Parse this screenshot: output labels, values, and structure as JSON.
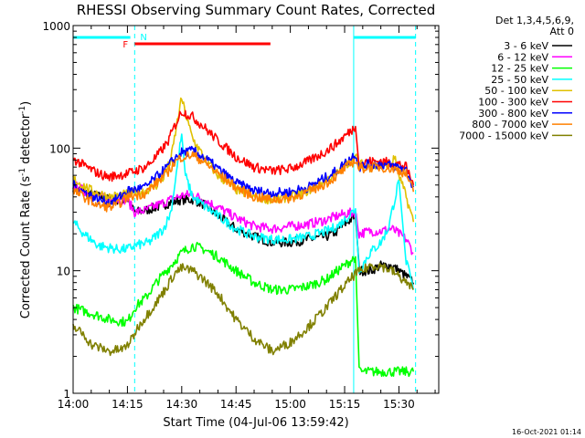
{
  "chart_data": {
    "type": "line",
    "title": "RHESSI Observing Summary Count Rates, Corrected",
    "xlabel": "Start Time (04-Jul-06 13:59:42)",
    "ylabel": "Corrected Count Rate (s",
    "ylabel_sup1": "-1",
    "ylabel_mid": " detector",
    "ylabel_sup2": "-1",
    "ylabel_end": ")",
    "yscale": "log",
    "ylim": [
      1,
      1000
    ],
    "xlim_minutes": [
      0,
      101
    ],
    "x_ticks": [
      {
        "label": "14:00",
        "minute": 0
      },
      {
        "label": "14:15",
        "minute": 15
      },
      {
        "label": "14:30",
        "minute": 30
      },
      {
        "label": "14:45",
        "minute": 45
      },
      {
        "label": "15:00",
        "minute": 60
      },
      {
        "label": "15:15",
        "minute": 75
      },
      {
        "label": "15:30",
        "minute": 90
      }
    ],
    "y_ticks": [
      {
        "label": "1",
        "value": 1
      },
      {
        "label": "10",
        "value": 10
      },
      {
        "label": "100",
        "value": 100
      },
      {
        "label": "1000",
        "value": 1000
      }
    ],
    "legend_header": [
      "Det 1,3,4,5,6,9,",
      "Att 0"
    ],
    "series": [
      {
        "name": "3 - 6 keV",
        "color": "#000000",
        "points": [
          [
            0,
            48
          ],
          [
            5,
            42
          ],
          [
            10,
            38
          ],
          [
            15,
            38
          ],
          [
            17,
            30
          ],
          [
            20,
            31
          ],
          [
            23,
            33
          ],
          [
            27,
            36
          ],
          [
            30,
            38
          ],
          [
            33,
            38
          ],
          [
            36,
            35
          ],
          [
            40,
            28
          ],
          [
            45,
            22
          ],
          [
            50,
            19
          ],
          [
            55,
            17
          ],
          [
            60,
            17
          ],
          [
            65,
            18
          ],
          [
            70,
            19
          ],
          [
            73,
            21
          ],
          [
            75,
            24
          ],
          [
            78,
            28
          ],
          [
            79,
            10
          ],
          [
            82,
            10
          ],
          [
            85,
            11
          ],
          [
            88,
            11
          ],
          [
            90,
            10
          ],
          [
            92,
            9
          ],
          [
            94,
            8
          ]
        ]
      },
      {
        "name": "6 - 12 keV",
        "color": "#ff00ff",
        "points": [
          [
            0,
            50
          ],
          [
            5,
            42
          ],
          [
            10,
            38
          ],
          [
            15,
            38
          ],
          [
            17,
            30
          ],
          [
            20,
            31
          ],
          [
            23,
            34
          ],
          [
            27,
            38
          ],
          [
            30,
            41
          ],
          [
            33,
            42
          ],
          [
            36,
            38
          ],
          [
            40,
            33
          ],
          [
            45,
            27
          ],
          [
            50,
            23
          ],
          [
            55,
            22
          ],
          [
            60,
            23
          ],
          [
            65,
            24
          ],
          [
            70,
            26
          ],
          [
            73,
            28
          ],
          [
            75,
            29
          ],
          [
            78,
            30
          ],
          [
            79,
            20
          ],
          [
            82,
            21
          ],
          [
            85,
            21
          ],
          [
            88,
            22
          ],
          [
            90,
            20
          ],
          [
            92,
            18
          ],
          [
            94,
            14
          ]
        ]
      },
      {
        "name": "12 - 25 keV",
        "color": "#00ff00",
        "points": [
          [
            0,
            5
          ],
          [
            5,
            4.5
          ],
          [
            10,
            4
          ],
          [
            15,
            3.8
          ],
          [
            17,
            5
          ],
          [
            20,
            6
          ],
          [
            23,
            8
          ],
          [
            27,
            11
          ],
          [
            30,
            14
          ],
          [
            33,
            16
          ],
          [
            36,
            15
          ],
          [
            40,
            13
          ],
          [
            45,
            10
          ],
          [
            50,
            8
          ],
          [
            55,
            7
          ],
          [
            60,
            7
          ],
          [
            65,
            7.5
          ],
          [
            70,
            8.5
          ],
          [
            73,
            10
          ],
          [
            75,
            11
          ],
          [
            78,
            13
          ],
          [
            79,
            1.5
          ],
          [
            94,
            1.5
          ]
        ]
      },
      {
        "name": "25 - 50 keV",
        "color": "#00ffff",
        "points": [
          [
            0,
            25
          ],
          [
            3,
            20
          ],
          [
            7,
            16
          ],
          [
            12,
            15
          ],
          [
            15,
            15
          ],
          [
            17,
            16
          ],
          [
            21,
            17
          ],
          [
            25,
            22
          ],
          [
            27,
            30
          ],
          [
            29,
            80
          ],
          [
            30,
            130
          ],
          [
            31,
            60
          ],
          [
            33,
            40
          ],
          [
            36,
            34
          ],
          [
            40,
            28
          ],
          [
            45,
            22
          ],
          [
            50,
            19
          ],
          [
            55,
            18
          ],
          [
            60,
            18
          ],
          [
            65,
            19
          ],
          [
            70,
            21
          ],
          [
            73,
            23
          ],
          [
            75,
            26
          ],
          [
            78,
            32
          ],
          [
            79,
            10
          ],
          [
            82,
            14
          ],
          [
            85,
            17
          ],
          [
            87,
            22
          ],
          [
            89,
            40
          ],
          [
            90,
            55
          ],
          [
            91,
            25
          ],
          [
            92,
            12
          ],
          [
            94,
            7
          ]
        ]
      },
      {
        "name": "50 - 100 keV",
        "color": "#e0c000",
        "points": [
          [
            0,
            56
          ],
          [
            5,
            45
          ],
          [
            10,
            40
          ],
          [
            15,
            42
          ],
          [
            17,
            43
          ],
          [
            20,
            45
          ],
          [
            23,
            50
          ],
          [
            25,
            58
          ],
          [
            27,
            80
          ],
          [
            29,
            180
          ],
          [
            30,
            255
          ],
          [
            31,
            190
          ],
          [
            33,
            120
          ],
          [
            36,
            85
          ],
          [
            40,
            60
          ],
          [
            45,
            46
          ],
          [
            50,
            40
          ],
          [
            55,
            38
          ],
          [
            60,
            40
          ],
          [
            65,
            45
          ],
          [
            70,
            55
          ],
          [
            73,
            62
          ],
          [
            75,
            72
          ],
          [
            78,
            85
          ],
          [
            79,
            75
          ],
          [
            82,
            70
          ],
          [
            85,
            72
          ],
          [
            88,
            75
          ],
          [
            89,
            85
          ],
          [
            90,
            60
          ],
          [
            92,
            40
          ],
          [
            94,
            25
          ]
        ]
      },
      {
        "name": "100 - 300 keV",
        "color": "#ff0000",
        "points": [
          [
            0,
            82
          ],
          [
            3,
            72
          ],
          [
            7,
            62
          ],
          [
            10,
            58
          ],
          [
            12,
            60
          ],
          [
            15,
            62
          ],
          [
            17,
            65
          ],
          [
            20,
            70
          ],
          [
            23,
            85
          ],
          [
            26,
            110
          ],
          [
            28,
            150
          ],
          [
            30,
            200
          ],
          [
            33,
            180
          ],
          [
            36,
            150
          ],
          [
            40,
            115
          ],
          [
            45,
            85
          ],
          [
            50,
            70
          ],
          [
            55,
            65
          ],
          [
            60,
            68
          ],
          [
            65,
            78
          ],
          [
            70,
            95
          ],
          [
            73,
            110
          ],
          [
            75,
            125
          ],
          [
            78,
            150
          ],
          [
            79,
            75
          ],
          [
            82,
            78
          ],
          [
            85,
            78
          ],
          [
            88,
            76
          ],
          [
            90,
            74
          ],
          [
            92,
            70
          ],
          [
            94,
            50
          ]
        ]
      },
      {
        "name": "300 - 800 keV",
        "color": "#0000ff",
        "points": [
          [
            0,
            50
          ],
          [
            3,
            44
          ],
          [
            7,
            38
          ],
          [
            10,
            36
          ],
          [
            12,
            38
          ],
          [
            15,
            45
          ],
          [
            17,
            46
          ],
          [
            20,
            48
          ],
          [
            23,
            58
          ],
          [
            26,
            70
          ],
          [
            28,
            82
          ],
          [
            30,
            92
          ],
          [
            33,
            95
          ],
          [
            36,
            85
          ],
          [
            40,
            68
          ],
          [
            45,
            52
          ],
          [
            50,
            45
          ],
          [
            55,
            43
          ],
          [
            60,
            44
          ],
          [
            65,
            48
          ],
          [
            70,
            58
          ],
          [
            73,
            66
          ],
          [
            75,
            75
          ],
          [
            78,
            90
          ],
          [
            79,
            70
          ],
          [
            82,
            74
          ],
          [
            85,
            74
          ],
          [
            88,
            72
          ],
          [
            90,
            70
          ],
          [
            92,
            66
          ],
          [
            94,
            48
          ]
        ]
      },
      {
        "name": "800 - 7000 keV",
        "color": "#ff8000",
        "points": [
          [
            0,
            45
          ],
          [
            3,
            40
          ],
          [
            7,
            34
          ],
          [
            10,
            33
          ],
          [
            12,
            34
          ],
          [
            15,
            40
          ],
          [
            17,
            41
          ],
          [
            20,
            43
          ],
          [
            23,
            52
          ],
          [
            26,
            63
          ],
          [
            28,
            76
          ],
          [
            30,
            85
          ],
          [
            33,
            88
          ],
          [
            36,
            78
          ],
          [
            40,
            62
          ],
          [
            45,
            48
          ],
          [
            50,
            40
          ],
          [
            55,
            38
          ],
          [
            60,
            39
          ],
          [
            65,
            44
          ],
          [
            70,
            52
          ],
          [
            73,
            60
          ],
          [
            75,
            68
          ],
          [
            78,
            80
          ],
          [
            79,
            68
          ],
          [
            82,
            70
          ],
          [
            85,
            70
          ],
          [
            88,
            68
          ],
          [
            90,
            66
          ],
          [
            92,
            62
          ],
          [
            94,
            44
          ]
        ]
      },
      {
        "name": "7000 - 15000 keV",
        "color": "#808000",
        "points": [
          [
            0,
            3.5
          ],
          [
            3,
            3
          ],
          [
            5,
            2.5
          ],
          [
            10,
            2.2
          ],
          [
            14,
            2.3
          ],
          [
            16,
            2.7
          ],
          [
            18,
            3.5
          ],
          [
            20,
            4.2
          ],
          [
            23,
            5.5
          ],
          [
            26,
            7.5
          ],
          [
            28,
            9.5
          ],
          [
            30,
            10.5
          ],
          [
            33,
            10
          ],
          [
            36,
            8.5
          ],
          [
            40,
            6.5
          ],
          [
            45,
            4
          ],
          [
            50,
            2.8
          ],
          [
            55,
            2.2
          ],
          [
            60,
            2.6
          ],
          [
            65,
            3.5
          ],
          [
            70,
            5
          ],
          [
            73,
            6.5
          ],
          [
            75,
            7.5
          ],
          [
            78,
            9.5
          ],
          [
            80,
            10
          ],
          [
            82,
            11
          ],
          [
            85,
            11
          ],
          [
            88,
            10
          ],
          [
            90,
            9
          ],
          [
            92,
            8
          ],
          [
            94,
            7
          ]
        ]
      }
    ],
    "flag_bars": [
      {
        "name": "cyan-bar-1",
        "label": "",
        "color": "#00ffff",
        "x_start": 0,
        "x_end": 15.8
      },
      {
        "name": "cyan-bar-2",
        "label": "",
        "color": "#00ffff",
        "x_start": 77.5,
        "x_end": 94.6
      },
      {
        "name": "red-flare-bar",
        "label": "F",
        "color": "#ff0000",
        "x_start": 17,
        "x_end": 54.5
      },
      {
        "name": "night-marker",
        "label": "N",
        "color": "#00ffff",
        "x_start": 17,
        "x_end": 17
      }
    ],
    "vertical_markers": [
      {
        "minute": 17,
        "style": "dashed"
      },
      {
        "minute": 77.5,
        "style": "solid"
      },
      {
        "minute": 94.6,
        "style": "dashed"
      }
    ]
  },
  "footer_timestamp": "16-Oct-2021 01:14"
}
